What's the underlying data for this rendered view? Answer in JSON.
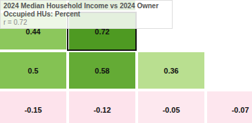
{
  "chart_data": {
    "type": "heatmap",
    "tooltip": {
      "title": "2024 Median Household Income vs 2024 Owner Occupied HUs: Percent",
      "text": "r = 0.72"
    },
    "cells": [
      [
        null,
        null,
        null,
        null
      ],
      [
        0.44,
        0.72,
        null,
        null
      ],
      [
        0.5,
        0.58,
        0.36,
        null
      ],
      [
        -0.15,
        -0.12,
        -0.05,
        -0.07
      ]
    ],
    "colors": [
      [
        "#8cc75c",
        "#4e9a22",
        null,
        null
      ],
      [
        "#8cc75c",
        "#4e9a22",
        null,
        null
      ],
      [
        "#84c253",
        "#64ab35",
        "#b9df90",
        null
      ],
      [
        "#fde3ec",
        "#fde3ec",
        "#fde8ef",
        "#fde6ee"
      ]
    ]
  }
}
